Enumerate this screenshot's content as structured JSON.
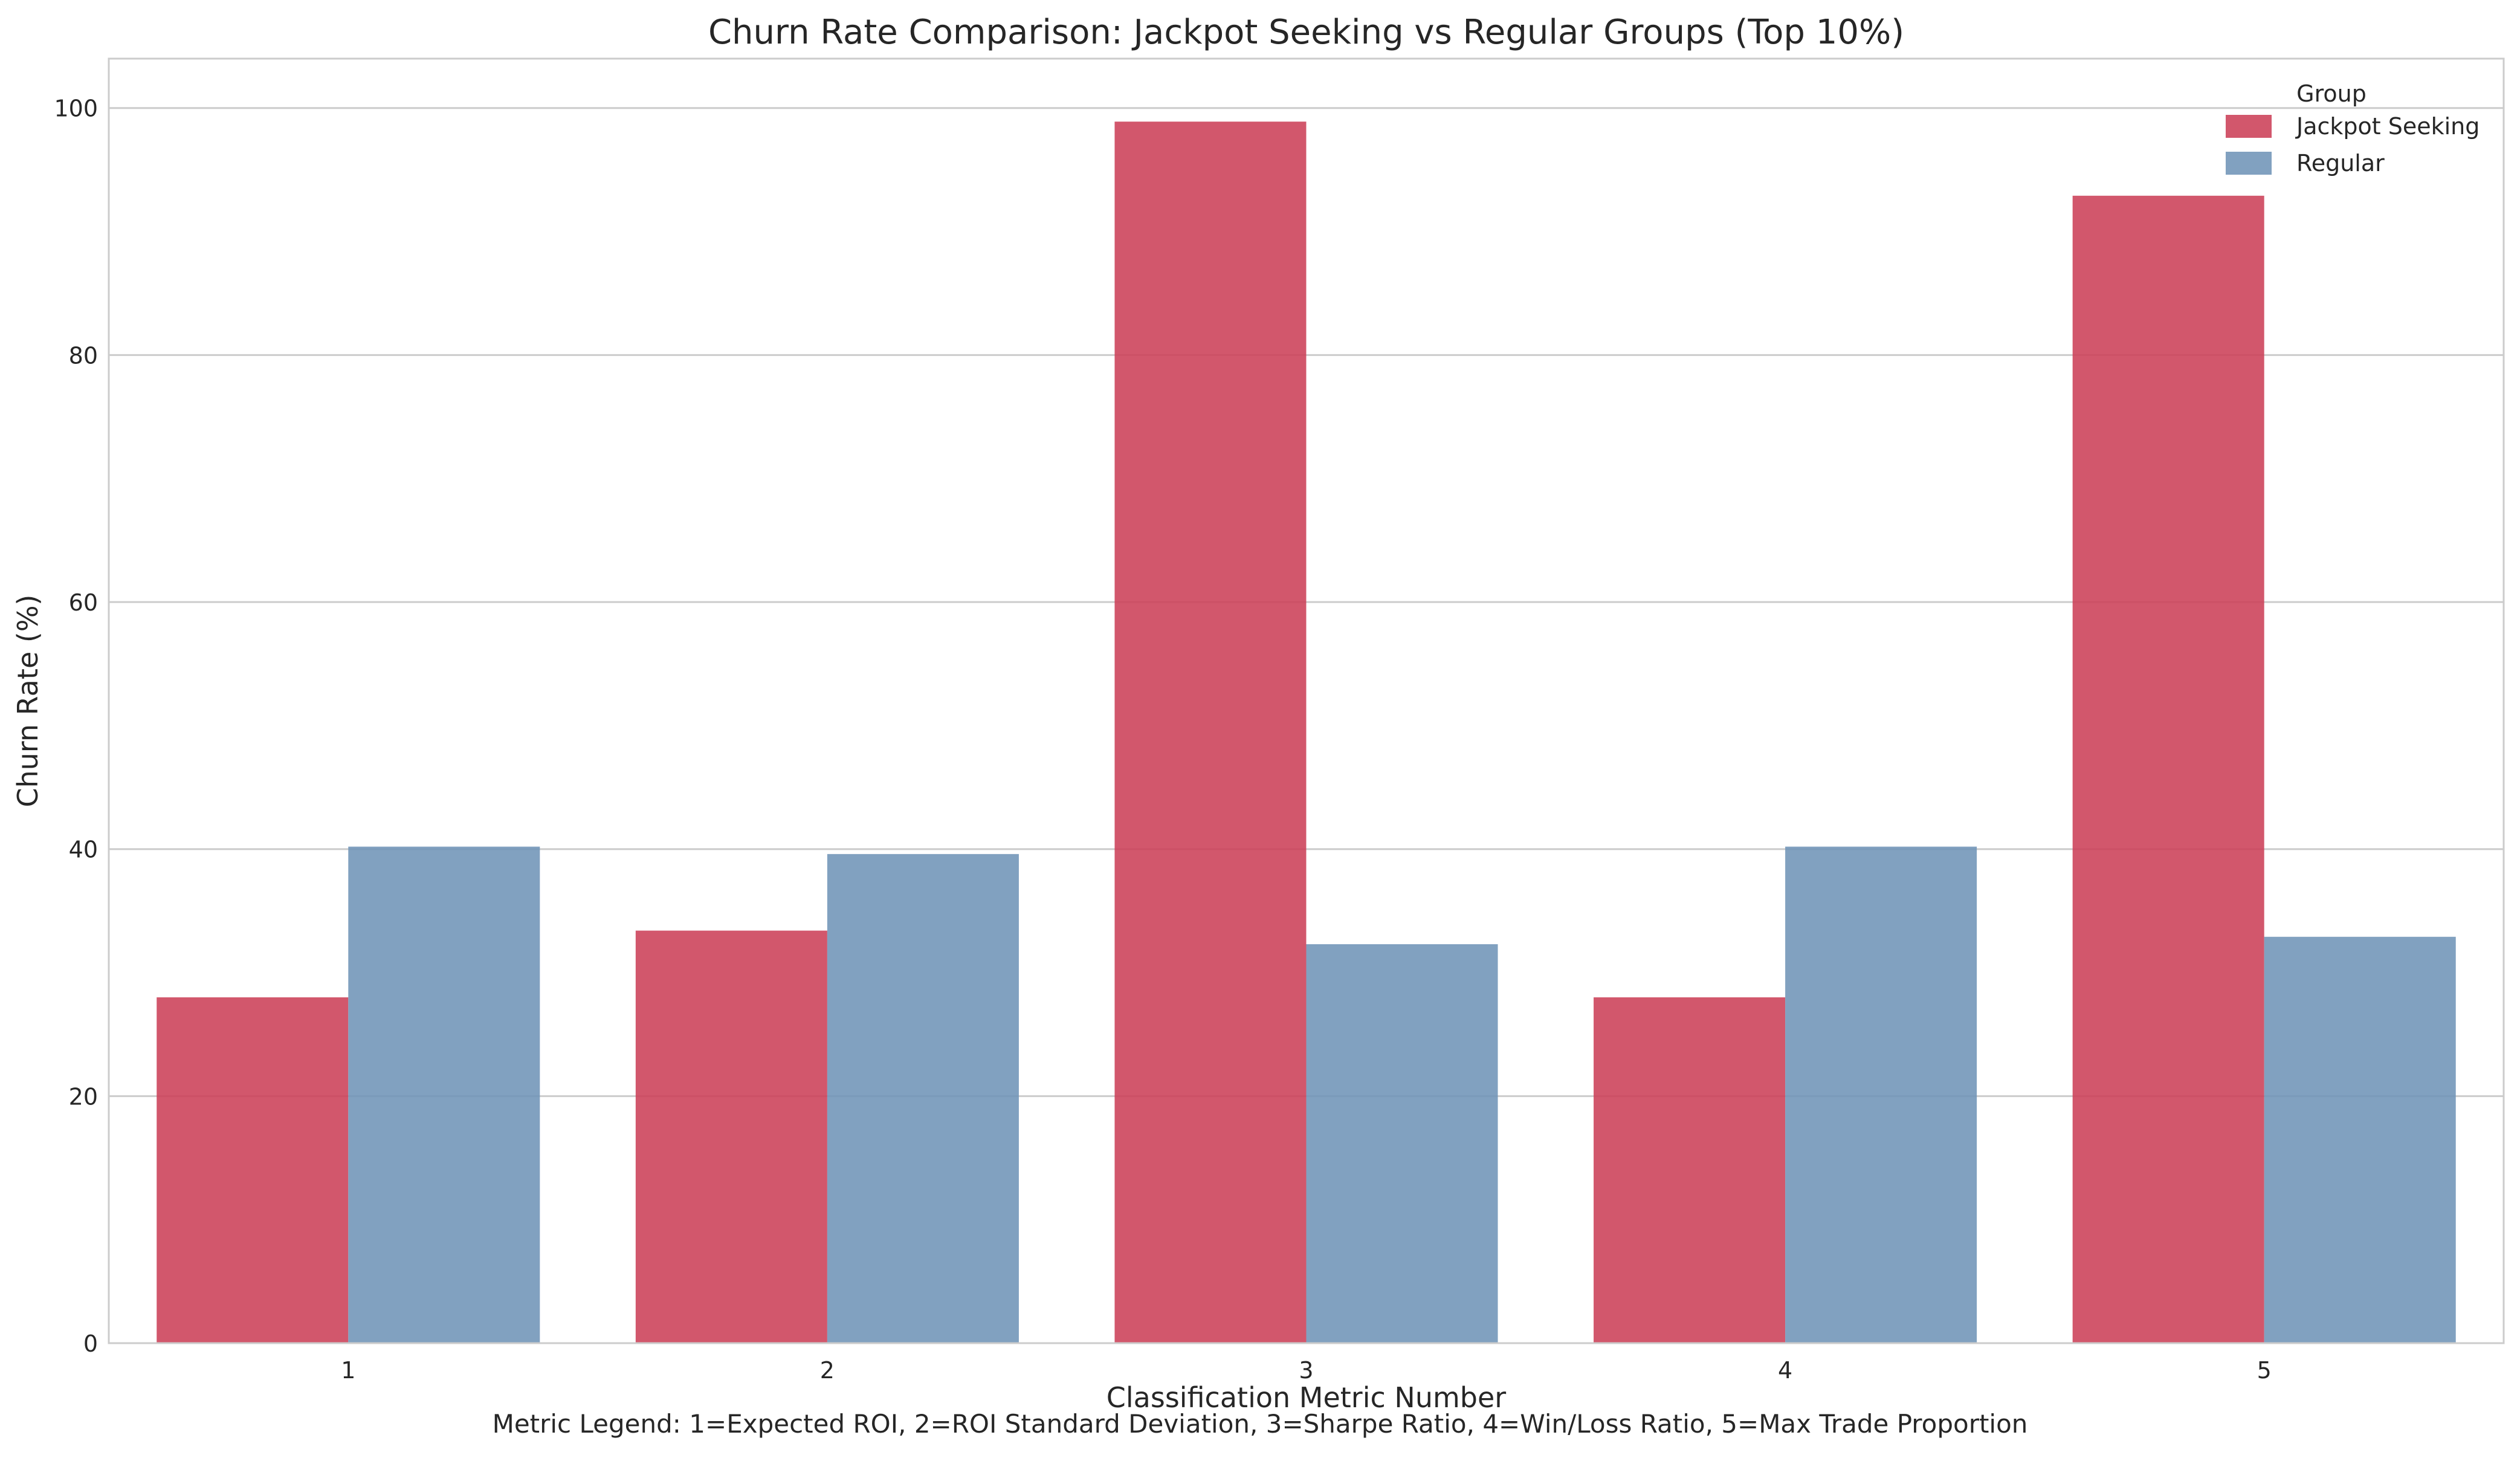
{
  "chart_data": {
    "type": "bar",
    "title": "Churn Rate Comparison: Jackpot Seeking vs Regular Groups (Top 10%)",
    "xlabel": "Classification Metric Number",
    "ylabel": "Churn Rate (%)",
    "caption": "Metric Legend: 1=Expected ROI, 2=ROI Standard Deviation, 3=Sharpe Ratio, 4=Win/Loss Ratio, 5=Max Trade Proportion",
    "categories": [
      "1",
      "2",
      "3",
      "4",
      "5"
    ],
    "ylim": [
      0,
      104
    ],
    "yticks": [
      0,
      20,
      40,
      60,
      80,
      100
    ],
    "grid": true,
    "legend": {
      "title": "Group",
      "placement": "top-right"
    },
    "series": [
      {
        "name": "Jackpot Seeking",
        "color": "#cc4058",
        "values": [
          28.0,
          33.4,
          98.9,
          28.0,
          92.9
        ]
      },
      {
        "name": "Regular",
        "color": "#6f94b7",
        "values": [
          40.2,
          39.6,
          32.3,
          40.2,
          32.9
        ]
      }
    ]
  }
}
